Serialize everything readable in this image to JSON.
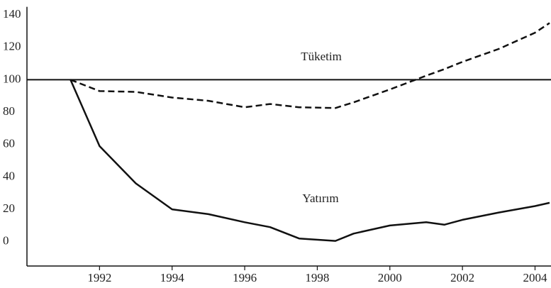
{
  "chart_data": {
    "type": "line",
    "x": [
      1991.2,
      1992,
      1993,
      1994,
      1995,
      1996,
      1996.7,
      1997.5,
      1998.5,
      1999,
      2000,
      2001,
      2001.5,
      2002,
      2003,
      2004,
      2004.4
    ],
    "series": [
      {
        "name": "Tüketim",
        "color": "#111111",
        "dashed": true,
        "values": [
          100,
          93,
          92.5,
          89,
          87,
          83,
          85,
          83,
          82.5,
          86,
          94,
          102.5,
          106.5,
          111,
          119,
          129,
          135
        ]
      },
      {
        "name": "Yatırım",
        "color": "#111111",
        "dashed": false,
        "values": [
          100,
          59,
          36,
          20,
          17,
          12,
          9,
          2,
          0.5,
          5,
          10,
          12,
          10.5,
          13.5,
          18,
          22,
          24
        ]
      }
    ],
    "reference_line": 100,
    "xlim": [
      1990,
      2004.44
    ],
    "ylim": [
      -15,
      145
    ],
    "xticks": [
      1992,
      1994,
      1996,
      1998,
      2000,
      2002,
      2004
    ],
    "yticks": [
      0,
      20,
      40,
      60,
      80,
      100,
      120,
      140
    ]
  }
}
